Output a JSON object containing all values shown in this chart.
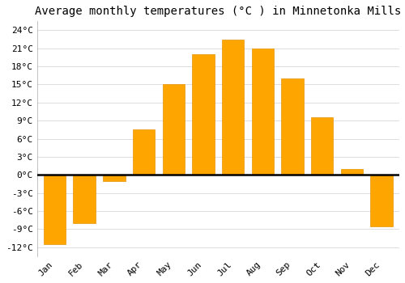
{
  "title": "Average monthly temperatures (°C ) in Minnetonka Mills",
  "months": [
    "Jan",
    "Feb",
    "Mar",
    "Apr",
    "May",
    "Jun",
    "Jul",
    "Aug",
    "Sep",
    "Oct",
    "Nov",
    "Dec"
  ],
  "values": [
    -11.5,
    -8.0,
    -1.0,
    7.5,
    15.0,
    20.0,
    22.5,
    21.0,
    16.0,
    9.5,
    1.0,
    -8.5
  ],
  "bar_color": "#FFA500",
  "bar_edge_color": "#E8950A",
  "background_color": "#FFFFFF",
  "plot_bg_color": "#FFFFFF",
  "grid_color": "#DDDDDD",
  "zero_line_color": "#000000",
  "ylim": [
    -13.5,
    25.5
  ],
  "yticks": [
    -12,
    -9,
    -6,
    -3,
    0,
    3,
    6,
    9,
    12,
    15,
    18,
    21,
    24
  ],
  "ytick_labels": [
    "-12°C",
    "-9°C",
    "-6°C",
    "-3°C",
    "0°C",
    "3°C",
    "6°C",
    "9°C",
    "12°C",
    "15°C",
    "18°C",
    "21°C",
    "24°C"
  ],
  "title_fontsize": 10,
  "tick_fontsize": 8,
  "bar_width": 0.75,
  "figsize": [
    5.0,
    3.5
  ],
  "dpi": 100
}
